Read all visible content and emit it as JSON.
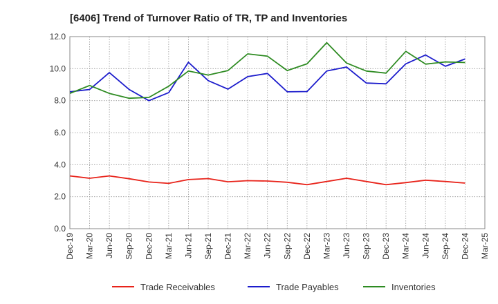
{
  "chart_data": {
    "type": "line",
    "title": "[6406]  Trend of Turnover Ratio of TR, TP and Inventories",
    "xlabel": "",
    "ylabel": "",
    "ylim": [
      0,
      12
    ],
    "yticks": [
      "0.0",
      "2.0",
      "4.0",
      "6.0",
      "8.0",
      "10.0",
      "12.0"
    ],
    "ytick_values": [
      0,
      2,
      4,
      6,
      8,
      10,
      12
    ],
    "x_tick_labels": [
      "Dec-19",
      "Mar-20",
      "Jun-20",
      "Sep-20",
      "Dec-20",
      "Mar-21",
      "Jun-21",
      "Sep-21",
      "Dec-21",
      "Mar-22",
      "Jun-22",
      "Sep-22",
      "Dec-22",
      "Mar-23",
      "Jun-23",
      "Sep-23",
      "Dec-23",
      "Mar-24",
      "Jun-24",
      "Sep-24",
      "Dec-24",
      "Mar-25"
    ],
    "x": [
      "Dec-19",
      "Mar-20",
      "Jun-20",
      "Sep-20",
      "Dec-20",
      "Mar-21",
      "Jun-21",
      "Sep-21",
      "Dec-21",
      "Mar-22",
      "Jun-22",
      "Sep-22",
      "Dec-22",
      "Mar-23",
      "Jun-23",
      "Sep-23",
      "Dec-23",
      "Mar-24",
      "Jun-24",
      "Sep-24",
      "Dec-24"
    ],
    "grid": true,
    "legend_position": "bottom",
    "series": [
      {
        "name": "Trade Receivables",
        "color": "#e8231a",
        "values": [
          3.3,
          3.15,
          3.3,
          3.12,
          2.92,
          2.83,
          3.07,
          3.13,
          2.93,
          3.0,
          2.98,
          2.9,
          2.75,
          2.95,
          3.15,
          2.95,
          2.75,
          2.88,
          3.03,
          2.95,
          2.85
        ]
      },
      {
        "name": "Trade Payables",
        "color": "#1c1ccc",
        "values": [
          8.55,
          8.7,
          9.75,
          8.7,
          8.0,
          8.5,
          10.4,
          9.25,
          8.72,
          9.5,
          9.7,
          8.55,
          8.57,
          9.85,
          10.1,
          9.1,
          9.05,
          10.3,
          10.85,
          10.15,
          10.6
        ]
      },
      {
        "name": "Inventories",
        "color": "#2e8b22",
        "values": [
          8.45,
          8.95,
          8.45,
          8.15,
          8.2,
          8.9,
          9.85,
          9.6,
          9.88,
          10.92,
          10.78,
          9.88,
          10.3,
          11.62,
          10.35,
          9.85,
          9.72,
          11.08,
          10.28,
          10.42,
          10.38
        ]
      }
    ]
  }
}
